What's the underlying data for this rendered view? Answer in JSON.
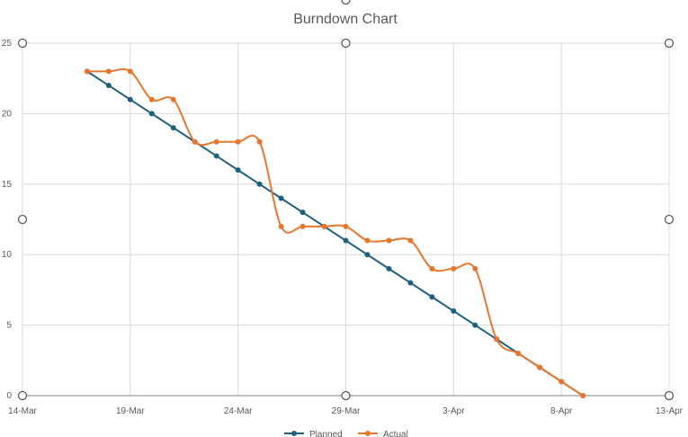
{
  "chart_data": {
    "type": "line",
    "title": "Burndown Chart",
    "xlabel": "",
    "ylabel": "",
    "x_range": [
      "14-Mar",
      "13-Apr"
    ],
    "ylim": [
      0,
      25
    ],
    "y_ticks": [
      "0",
      "5",
      "10",
      "15",
      "20",
      "25"
    ],
    "x_ticks": [
      "14-Mar",
      "19-Mar",
      "24-Mar",
      "29-Mar",
      "3-Apr",
      "8-Apr",
      "13-Apr"
    ],
    "grid": true,
    "legend_position": "bottom",
    "x": [
      "17-Mar",
      "18-Mar",
      "19-Mar",
      "20-Mar",
      "21-Mar",
      "22-Mar",
      "23-Mar",
      "24-Mar",
      "25-Mar",
      "26-Mar",
      "27-Mar",
      "28-Mar",
      "29-Mar",
      "30-Mar",
      "31-Mar",
      "1-Apr",
      "2-Apr",
      "3-Apr",
      "4-Apr",
      "5-Apr",
      "6-Apr",
      "7-Apr",
      "8-Apr",
      "9-Apr"
    ],
    "series": [
      {
        "name": "Planned",
        "color": "#1f5f7f",
        "values": [
          23,
          22,
          21,
          20,
          19,
          18,
          17,
          16,
          15,
          14,
          13,
          12,
          11,
          10,
          9,
          8,
          7,
          6,
          5,
          4,
          3,
          2,
          1,
          0
        ]
      },
      {
        "name": "Actual",
        "color": "#e8772e",
        "values": [
          23,
          23,
          23,
          21,
          21,
          18,
          18,
          18,
          18,
          12,
          12,
          12,
          12,
          11,
          11,
          11,
          9,
          9,
          9,
          4,
          3,
          2,
          1,
          0
        ]
      }
    ]
  }
}
